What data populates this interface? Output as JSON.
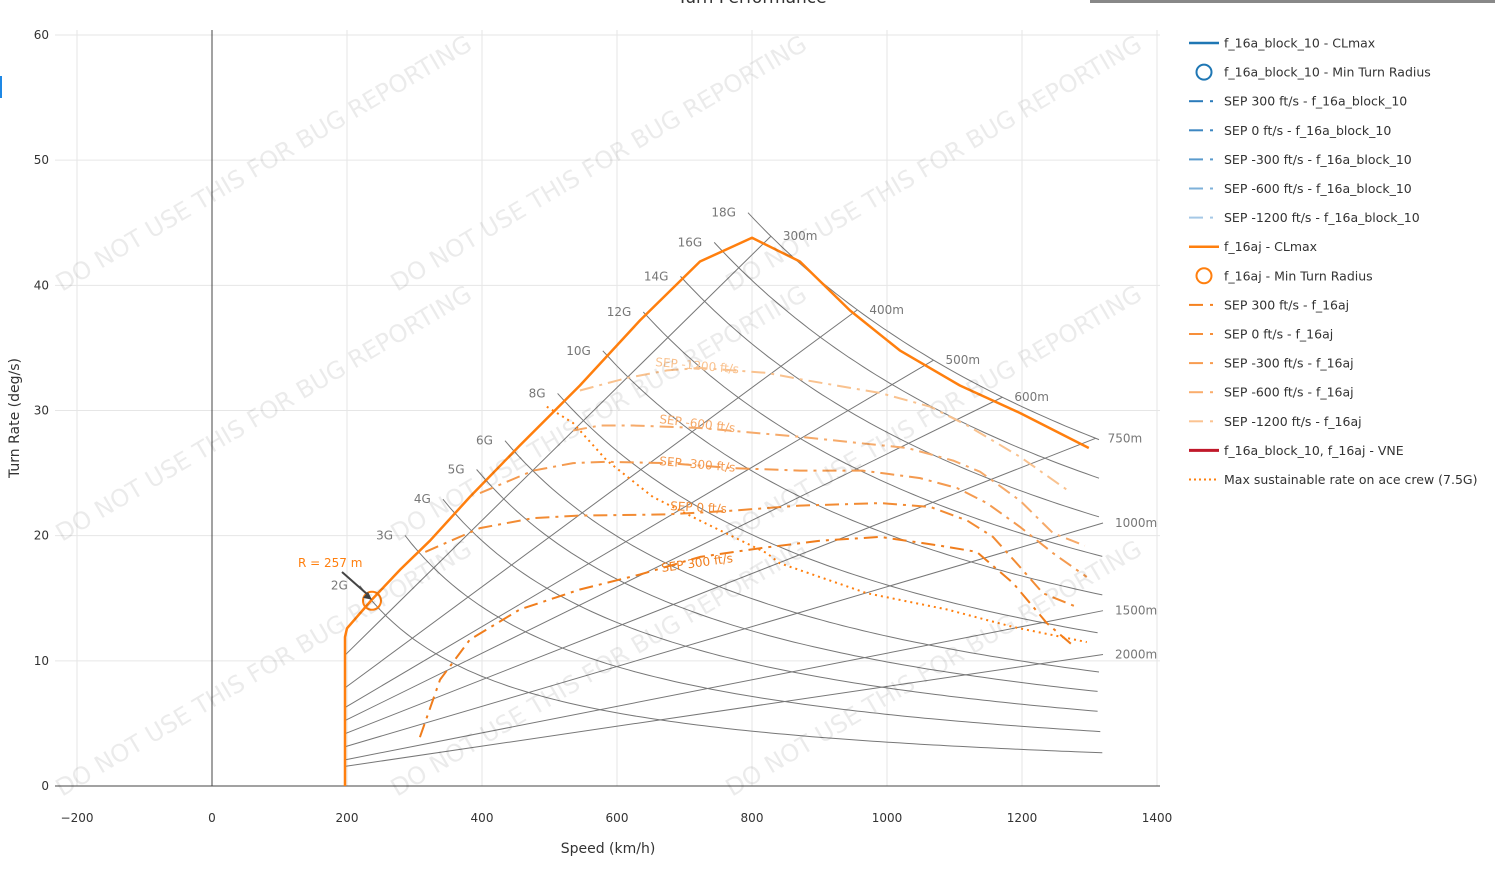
{
  "watermark": "DO NOT USE THIS FOR BUG REPORTING",
  "chart_data": {
    "type": "line",
    "title": "Turn Performance",
    "xlabel": "Speed (km/h)",
    "ylabel": "Turn Rate (deg/s)",
    "xlim": [
      -200,
      1400
    ],
    "ylim": [
      0,
      60
    ],
    "xticks": [
      "−200",
      "0",
      "200",
      "400",
      "600",
      "800",
      "1000",
      "1200",
      "1400"
    ],
    "xtick_values": [
      -200,
      0,
      200,
      400,
      600,
      800,
      1000,
      1200,
      1400
    ],
    "yticks": [
      "0",
      "10",
      "20",
      "30",
      "40",
      "50",
      "60"
    ],
    "ytick_values": [
      0,
      10,
      20,
      30,
      40,
      50,
      60
    ],
    "grid": true,
    "legend_position": "right",
    "g_lines": {
      "max_speed": 1320,
      "items": [
        {
          "label": "2G",
          "n": 2,
          "start_speed": 219
        },
        {
          "label": "3G",
          "n": 3,
          "start_speed": 286
        },
        {
          "label": "4G",
          "n": 4,
          "start_speed": 342
        },
        {
          "label": "5G",
          "n": 5,
          "start_speed": 392
        },
        {
          "label": "6G",
          "n": 6,
          "start_speed": 434
        },
        {
          "label": "8G",
          "n": 8,
          "start_speed": 512
        },
        {
          "label": "10G",
          "n": 10,
          "start_speed": 579
        },
        {
          "label": "12G",
          "n": 12,
          "start_speed": 639
        },
        {
          "label": "14G",
          "n": 14,
          "start_speed": 694
        },
        {
          "label": "16G",
          "n": 16,
          "start_speed": 744
        },
        {
          "label": "18G",
          "n": 18,
          "start_speed": 794
        }
      ]
    },
    "radius_lines": {
      "min_speed": 197,
      "max_speed": 1320,
      "max_load": 18,
      "items": [
        {
          "label": "300m",
          "radius": 300
        },
        {
          "label": "400m",
          "radius": 400
        },
        {
          "label": "500m",
          "radius": 500
        },
        {
          "label": "600m",
          "radius": 600
        },
        {
          "label": "750m",
          "radius": 750
        },
        {
          "label": "1000m",
          "radius": 1000
        },
        {
          "label": "1500m",
          "radius": 1500
        },
        {
          "label": "2000m",
          "radius": 2000
        }
      ]
    },
    "series": [
      {
        "name": "f_16aj - CLmax",
        "color": "#ff7f0e",
        "style": "solid",
        "x": [
          197,
          197,
          200,
          237,
          279,
          323,
          382,
          456,
          545,
          634,
          723,
          800,
          871,
          945,
          1019,
          1108,
          1197,
          1299
        ],
        "y": [
          0,
          11.9,
          12.6,
          14.9,
          17.3,
          19.6,
          23.1,
          27.2,
          32.0,
          37.2,
          41.9,
          43.8,
          41.9,
          38.0,
          34.8,
          32.0,
          29.8,
          27.0
        ]
      },
      {
        "name": "SEP 300 ft/s - f_16aj",
        "label": "SEP 300 ft/s",
        "color": "#f07d1c",
        "style": "dashdot",
        "x": [
          308,
          338,
          382,
          456,
          545,
          634,
          723,
          812,
          901,
          990,
          1079,
          1133,
          1187,
          1237,
          1276
        ],
        "y": [
          3.9,
          8.5,
          11.7,
          14.1,
          15.7,
          16.9,
          18.3,
          19.0,
          19.6,
          19.9,
          19.2,
          18.7,
          16.2,
          13.0,
          11.2
        ]
      },
      {
        "name": "SEP 0 ft/s - f_16aj",
        "label": "SEP 0 ft/s",
        "color": "#f28b33",
        "style": "dashdot",
        "x": [
          316,
          397,
          476,
          545,
          674,
          772,
          871,
          990,
          1064,
          1119,
          1157,
          1197,
          1231,
          1281
        ],
        "y": [
          18.7,
          20.6,
          21.4,
          21.6,
          21.7,
          22.0,
          22.4,
          22.6,
          22.3,
          21.2,
          19.9,
          17.5,
          15.4,
          14.3
        ]
      },
      {
        "name": "SEP -300 ft/s - f_16aj",
        "label": "SEP -300 ft/s",
        "color": "#f49a4f",
        "style": "dashdot",
        "x": [
          397,
          476,
          535,
          585,
          674,
          772,
          871,
          964,
          1049,
          1104,
          1148,
          1197,
          1246,
          1296
        ],
        "y": [
          23.4,
          25.2,
          25.8,
          25.9,
          25.8,
          25.4,
          25.2,
          25.2,
          24.6,
          23.8,
          22.6,
          20.7,
          18.6,
          16.7
        ]
      },
      {
        "name": "SEP -600 ft/s - f_16aj",
        "label": "SEP -600 ft/s",
        "color": "#f6aa6a",
        "style": "dashdot",
        "x": [
          535,
          575,
          624,
          723,
          871,
          941,
          1030,
          1098,
          1138,
          1197,
          1246,
          1293
        ],
        "y": [
          28.4,
          28.8,
          28.8,
          28.6,
          27.9,
          27.5,
          27.0,
          26.0,
          25.1,
          22.8,
          20.2,
          19.2
        ]
      },
      {
        "name": "SEP -1200 ft/s - f_16aj",
        "label": "SEP -1200 ft/s",
        "color": "#f9c28f",
        "style": "dashdot",
        "x": [
          545,
          615,
          674,
          723,
          822,
          871,
          990,
          1064,
          1119,
          1197,
          1271
        ],
        "y": [
          31.6,
          32.6,
          33.2,
          33.4,
          33.0,
          32.5,
          31.4,
          30.3,
          28.8,
          26.3,
          23.5
        ]
      },
      {
        "name": "Max sustainable rate on ace crew (7.5G)",
        "color": "#ff7f0e",
        "style": "dotted",
        "x": [
          496,
          535,
          585,
          653,
          723,
          822,
          841,
          970,
          1089,
          1187,
          1296
        ],
        "y": [
          30.3,
          29.0,
          26.0,
          23.1,
          21.2,
          18.6,
          17.8,
          15.4,
          14.1,
          12.7,
          11.5
        ]
      }
    ],
    "min_turn_radius": {
      "speed": 237,
      "rate": 14.8,
      "annotation": "R = 257 m",
      "color": "#ff7f0e"
    },
    "legend": [
      {
        "label": "f_16a_block_10 - CLmax",
        "color": "#1f77b4",
        "style": "solid"
      },
      {
        "label": "f_16a_block_10 - Min Turn Radius",
        "color": "#1f77b4",
        "style": "circle"
      },
      {
        "label": "SEP 300 ft/s - f_16a_block_10",
        "color": "#2b7bba",
        "style": "dashdot"
      },
      {
        "label": "SEP 0 ft/s - f_16a_block_10",
        "color": "#3d87c2",
        "style": "dashdot"
      },
      {
        "label": "SEP -300 ft/s - f_16a_block_10",
        "color": "#5a9bcd",
        "style": "dashdot"
      },
      {
        "label": "SEP -600 ft/s - f_16a_block_10",
        "color": "#7eb1da",
        "style": "dashdot"
      },
      {
        "label": "SEP -1200 ft/s - f_16a_block_10",
        "color": "#a5c8e6",
        "style": "dashdot"
      },
      {
        "label": "f_16aj - CLmax",
        "color": "#ff7f0e",
        "style": "solid"
      },
      {
        "label": "f_16aj - Min Turn Radius",
        "color": "#ff7f0e",
        "style": "circle"
      },
      {
        "label": "SEP 300 ft/s - f_16aj",
        "color": "#f58220",
        "style": "dashdot"
      },
      {
        "label": "SEP 0 ft/s - f_16aj",
        "color": "#f78f3a",
        "style": "dashdot"
      },
      {
        "label": "SEP -300 ft/s - f_16aj",
        "color": "#f89c50",
        "style": "dashdot"
      },
      {
        "label": "SEP -600 ft/s - f_16aj",
        "color": "#faad6c",
        "style": "dashdot"
      },
      {
        "label": "SEP -1200 ft/s - f_16aj",
        "color": "#fbc391",
        "style": "dashdot"
      },
      {
        "label": "f_16a_block_10, f_16aj - VNE",
        "color": "#c0182a",
        "style": "solid"
      },
      {
        "label": "Max sustainable rate on ace crew (7.5G)",
        "color": "#ff7f0e",
        "style": "dotted"
      }
    ]
  }
}
